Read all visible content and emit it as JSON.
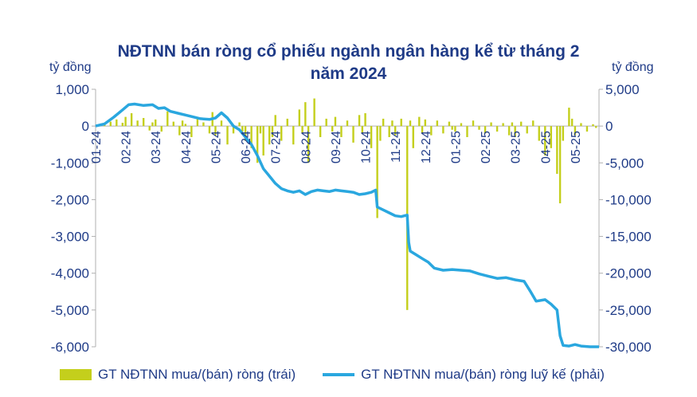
{
  "chart_data": {
    "type": "bar+line",
    "title_line1": "NĐTNN bán ròng cổ phiếu ngành ngân hàng kể từ tháng 2",
    "title_line2": "năm 2024",
    "left_unit": "tỷ đồng",
    "right_unit": "tỷ đồng",
    "left_ylim": [
      -6000,
      1000
    ],
    "right_ylim": [
      -30000,
      5000
    ],
    "left_ticks": [
      "1,000",
      "0",
      "-1,000",
      "-2,000",
      "-3,000",
      "-4,000",
      "-5,000",
      "-6,000"
    ],
    "right_ticks": [
      "5,000",
      "0",
      "-5,000",
      "-10,000",
      "-15,000",
      "-20,000",
      "-25,000",
      "-30,000"
    ],
    "x_tick_labels": [
      "01-24",
      "02-24",
      "03-24",
      "04-24",
      "05-24",
      "06-24",
      "07-24",
      "08-24",
      "09-24",
      "10-24",
      "11-24",
      "12-24",
      "01-25",
      "02-25",
      "03-25",
      "04-25",
      "05-25"
    ],
    "x_range_months": [
      0,
      16.8
    ],
    "colors": {
      "bars": "#c4cf1c",
      "line": "#2aa7df",
      "text": "#1f3b87",
      "axis": "#b0b0b0"
    },
    "series": [
      {
        "name": "GT NĐTNN mua/(bán) ròng (trái)",
        "axis": "left",
        "style": "bar",
        "points": [
          [
            0.1,
            30
          ],
          [
            0.3,
            80
          ],
          [
            0.5,
            120
          ],
          [
            0.7,
            180
          ],
          [
            0.9,
            90
          ],
          [
            1.0,
            250
          ],
          [
            1.2,
            350
          ],
          [
            1.4,
            150
          ],
          [
            1.6,
            220
          ],
          [
            1.8,
            -120
          ],
          [
            1.9,
            100
          ],
          [
            2.0,
            180
          ],
          [
            2.2,
            -150
          ],
          [
            2.4,
            400
          ],
          [
            2.6,
            120
          ],
          [
            2.8,
            -250
          ],
          [
            2.9,
            150
          ],
          [
            3.0,
            60
          ],
          [
            3.2,
            -300
          ],
          [
            3.4,
            200
          ],
          [
            3.6,
            100
          ],
          [
            3.8,
            -200
          ],
          [
            3.9,
            380
          ],
          [
            4.0,
            -250
          ],
          [
            4.2,
            150
          ],
          [
            4.4,
            -500
          ],
          [
            4.6,
            -200
          ],
          [
            4.8,
            100
          ],
          [
            4.9,
            -150
          ],
          [
            5.0,
            -400
          ],
          [
            5.2,
            -600
          ],
          [
            5.4,
            -1000
          ],
          [
            5.5,
            -200
          ],
          [
            5.6,
            -800
          ],
          [
            5.8,
            -500
          ],
          [
            5.9,
            -300
          ],
          [
            6.0,
            300
          ],
          [
            6.2,
            -400
          ],
          [
            6.4,
            200
          ],
          [
            6.6,
            -500
          ],
          [
            6.8,
            450
          ],
          [
            6.9,
            -200
          ],
          [
            7.0,
            650
          ],
          [
            7.1,
            -1000
          ],
          [
            7.3,
            750
          ],
          [
            7.5,
            -300
          ],
          [
            7.7,
            200
          ],
          [
            7.9,
            -150
          ],
          [
            8.0,
            250
          ],
          [
            8.2,
            -300
          ],
          [
            8.4,
            150
          ],
          [
            8.6,
            -450
          ],
          [
            8.8,
            300
          ],
          [
            8.9,
            -200
          ],
          [
            9.0,
            350
          ],
          [
            9.2,
            -600
          ],
          [
            9.4,
            -2500
          ],
          [
            9.5,
            -400
          ],
          [
            9.6,
            200
          ],
          [
            9.8,
            -300
          ],
          [
            9.9,
            150
          ],
          [
            10.0,
            -250
          ],
          [
            10.2,
            200
          ],
          [
            10.4,
            -5000
          ],
          [
            10.5,
            150
          ],
          [
            10.6,
            -600
          ],
          [
            10.8,
            250
          ],
          [
            10.9,
            -200
          ],
          [
            11.0,
            180
          ],
          [
            11.2,
            -250
          ],
          [
            11.4,
            150
          ],
          [
            11.6,
            -200
          ],
          [
            11.8,
            120
          ],
          [
            11.9,
            -100
          ],
          [
            12.0,
            -150
          ],
          [
            12.2,
            80
          ],
          [
            12.4,
            -300
          ],
          [
            12.6,
            150
          ],
          [
            12.8,
            -100
          ],
          [
            13.0,
            -200
          ],
          [
            13.2,
            100
          ],
          [
            13.4,
            -150
          ],
          [
            13.6,
            80
          ],
          [
            13.8,
            -250
          ],
          [
            13.9,
            100
          ],
          [
            14.0,
            -300
          ],
          [
            14.2,
            120
          ],
          [
            14.4,
            -200
          ],
          [
            14.6,
            150
          ],
          [
            14.8,
            -400
          ],
          [
            15.0,
            -800
          ],
          [
            15.2,
            -600
          ],
          [
            15.4,
            -1300
          ],
          [
            15.5,
            -2100
          ],
          [
            15.6,
            -400
          ],
          [
            15.8,
            500
          ],
          [
            15.9,
            200
          ],
          [
            16.0,
            -250
          ],
          [
            16.2,
            80
          ],
          [
            16.4,
            -150
          ],
          [
            16.6,
            50
          ],
          [
            16.7,
            -50
          ]
        ]
      },
      {
        "name": "GT NĐTNN mua/(bán) ròng luỹ kế (phải)",
        "axis": "right",
        "style": "line",
        "points": [
          [
            0,
            0
          ],
          [
            0.3,
            300
          ],
          [
            0.6,
            1200
          ],
          [
            0.9,
            2200
          ],
          [
            1.1,
            2900
          ],
          [
            1.3,
            3000
          ],
          [
            1.6,
            2800
          ],
          [
            1.9,
            2900
          ],
          [
            2.1,
            2400
          ],
          [
            2.3,
            2500
          ],
          [
            2.5,
            2000
          ],
          [
            2.8,
            1700
          ],
          [
            3.0,
            1500
          ],
          [
            3.3,
            1200
          ],
          [
            3.5,
            1000
          ],
          [
            3.8,
            900
          ],
          [
            4.0,
            1100
          ],
          [
            4.2,
            1800
          ],
          [
            4.4,
            1100
          ],
          [
            4.6,
            0
          ],
          [
            4.8,
            -500
          ],
          [
            5.0,
            -1500
          ],
          [
            5.2,
            -2500
          ],
          [
            5.4,
            -4000
          ],
          [
            5.6,
            -5800
          ],
          [
            5.8,
            -6800
          ],
          [
            6.0,
            -7800
          ],
          [
            6.2,
            -8500
          ],
          [
            6.4,
            -8800
          ],
          [
            6.6,
            -9000
          ],
          [
            6.8,
            -8800
          ],
          [
            7.0,
            -9300
          ],
          [
            7.2,
            -8900
          ],
          [
            7.4,
            -8700
          ],
          [
            7.6,
            -8800
          ],
          [
            7.8,
            -8900
          ],
          [
            8.0,
            -8700
          ],
          [
            8.2,
            -8800
          ],
          [
            8.4,
            -8900
          ],
          [
            8.6,
            -9000
          ],
          [
            8.8,
            -9300
          ],
          [
            9.0,
            -9200
          ],
          [
            9.2,
            -9000
          ],
          [
            9.35,
            -8700
          ],
          [
            9.4,
            -11000
          ],
          [
            9.6,
            -11400
          ],
          [
            9.8,
            -11800
          ],
          [
            10.0,
            -12200
          ],
          [
            10.2,
            -12300
          ],
          [
            10.4,
            -12100
          ],
          [
            10.45,
            -15800
          ],
          [
            10.5,
            -17000
          ],
          [
            10.7,
            -17500
          ],
          [
            10.9,
            -18000
          ],
          [
            11.1,
            -18500
          ],
          [
            11.3,
            -19300
          ],
          [
            11.6,
            -19600
          ],
          [
            11.9,
            -19500
          ],
          [
            12.2,
            -19600
          ],
          [
            12.5,
            -19700
          ],
          [
            12.8,
            -20100
          ],
          [
            13.1,
            -20400
          ],
          [
            13.4,
            -20700
          ],
          [
            13.7,
            -20600
          ],
          [
            14.0,
            -20900
          ],
          [
            14.3,
            -21100
          ],
          [
            14.5,
            -22400
          ],
          [
            14.7,
            -23800
          ],
          [
            15.0,
            -23600
          ],
          [
            15.2,
            -24200
          ],
          [
            15.4,
            -25000
          ],
          [
            15.5,
            -28500
          ],
          [
            15.6,
            -29800
          ],
          [
            15.8,
            -29900
          ],
          [
            16.0,
            -29700
          ],
          [
            16.2,
            -29900
          ],
          [
            16.5,
            -30000
          ],
          [
            16.8,
            -30000
          ]
        ]
      }
    ]
  }
}
